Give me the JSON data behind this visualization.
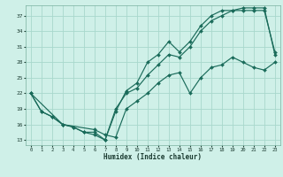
{
  "xlabel": "Humidex (Indice chaleur)",
  "bg_color": "#cff0e8",
  "grid_color": "#a8d8cc",
  "line_color": "#1a6b5a",
  "xlim": [
    -0.5,
    23.5
  ],
  "ylim": [
    12,
    39
  ],
  "yticks": [
    13,
    16,
    19,
    22,
    25,
    28,
    31,
    34,
    37
  ],
  "xticks": [
    0,
    1,
    2,
    3,
    4,
    5,
    6,
    7,
    8,
    9,
    10,
    11,
    12,
    13,
    14,
    15,
    16,
    17,
    18,
    19,
    20,
    21,
    22,
    23
  ],
  "line1_x": [
    0,
    1,
    2,
    3,
    4,
    5,
    6,
    7,
    8,
    9,
    10,
    11,
    12,
    13,
    14,
    15,
    16,
    17,
    18,
    19,
    20,
    21,
    22,
    23
  ],
  "line1_y": [
    22,
    18.5,
    17.5,
    16,
    15.5,
    14.5,
    14.5,
    13,
    19,
    22,
    23,
    25.5,
    27.5,
    29.5,
    29,
    31,
    34,
    36,
    37,
    38,
    38.5,
    38.5,
    38.5,
    29.5
  ],
  "line2_x": [
    0,
    1,
    2,
    3,
    4,
    5,
    6,
    7,
    8,
    9,
    10,
    11,
    12,
    13,
    14,
    15,
    16,
    17,
    18,
    19,
    20,
    21,
    22,
    23
  ],
  "line2_y": [
    22,
    18.5,
    17.5,
    16,
    15.5,
    14.5,
    14,
    13,
    18.5,
    22.5,
    24,
    28,
    29.5,
    32,
    30,
    32,
    35,
    37,
    38,
    38,
    38,
    38,
    38,
    30
  ],
  "line3_x": [
    0,
    3,
    6,
    7,
    8,
    9,
    10,
    11,
    12,
    13,
    14,
    15,
    16,
    17,
    18,
    19,
    20,
    21,
    22,
    23
  ],
  "line3_y": [
    22,
    16,
    15,
    14,
    13.5,
    19,
    20.5,
    22,
    24,
    25.5,
    26,
    22,
    25,
    27,
    27.5,
    29,
    28,
    27,
    26.5,
    28
  ]
}
